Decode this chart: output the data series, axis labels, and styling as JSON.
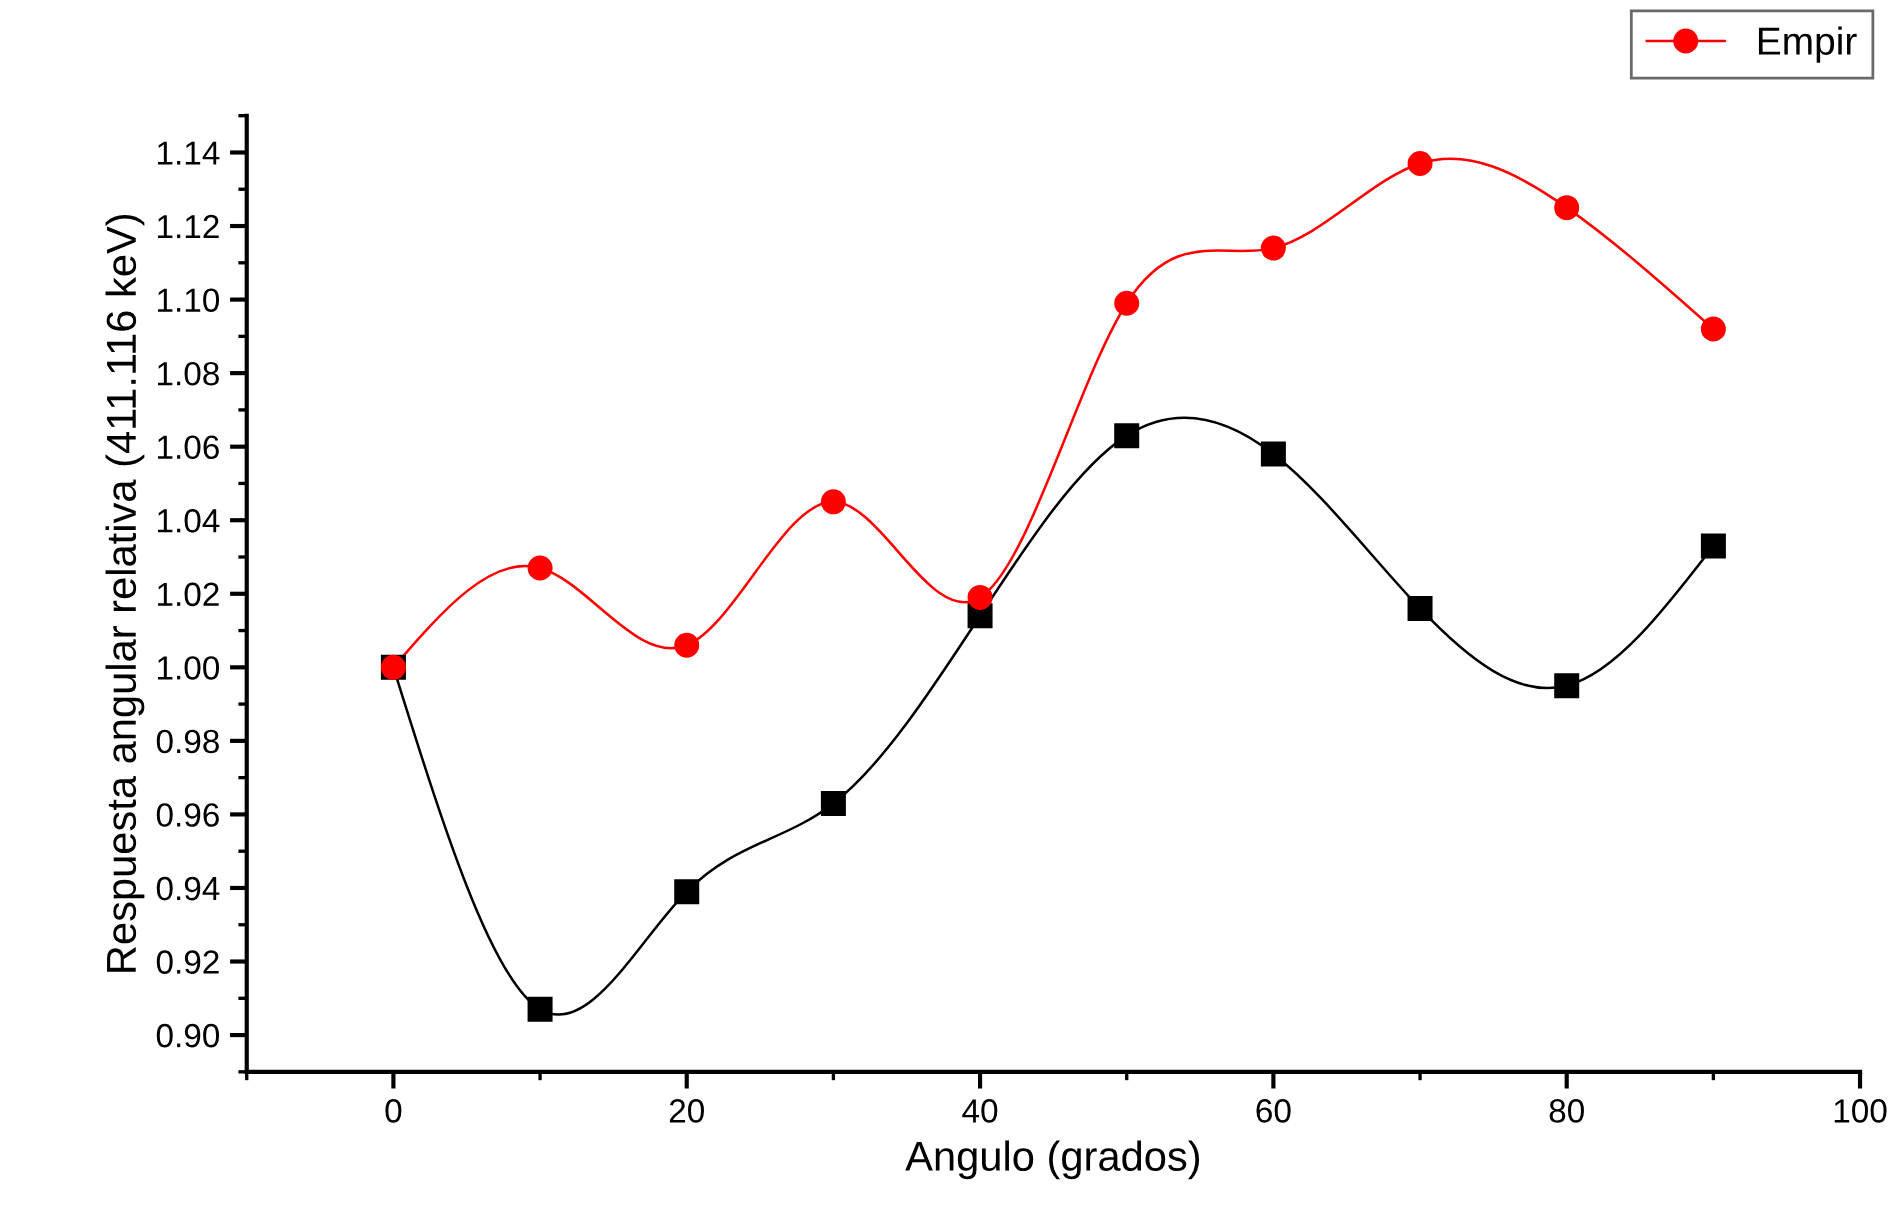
{
  "chart_data": {
    "type": "line",
    "xlabel": "Angulo (grados)",
    "ylabel": "Respuesta angular relativa (411.116 keV)",
    "x": [
      0,
      10,
      20,
      30,
      40,
      50,
      60,
      70,
      80,
      90
    ],
    "xlim": [
      -10,
      100
    ],
    "xticks": [
      0,
      20,
      40,
      60,
      80,
      100
    ],
    "ylim": [
      0.89,
      1.15
    ],
    "yticks": [
      {
        "value": 0.9,
        "label": "0.90"
      },
      {
        "value": 0.92,
        "label": "0.92"
      },
      {
        "value": 0.94,
        "label": "0.94"
      },
      {
        "value": 0.96,
        "label": "0.96"
      },
      {
        "value": 0.98,
        "label": "0.98"
      },
      {
        "value": 1.0,
        "label": "1.00"
      },
      {
        "value": 1.02,
        "label": "1.02"
      },
      {
        "value": 1.04,
        "label": "1.04"
      },
      {
        "value": 1.06,
        "label": "1.06"
      },
      {
        "value": 1.08,
        "label": "1.08"
      },
      {
        "value": 1.1,
        "label": "1.10"
      },
      {
        "value": 1.12,
        "label": "1.12"
      },
      {
        "value": 1.14,
        "label": "1.14"
      }
    ],
    "grid": false,
    "legend": "top right",
    "series": [
      {
        "color": "#000000",
        "marker": "square",
        "values": [
          1.0,
          0.907,
          0.939,
          0.963,
          1.014,
          1.063,
          1.058,
          1.016,
          0.995,
          1.033
        ]
      },
      {
        "name": "Empir",
        "color": "#ff0000",
        "marker": "circle",
        "values": [
          1.0,
          1.027,
          1.006,
          1.045,
          1.019,
          1.099,
          1.114,
          1.137,
          1.125,
          1.092
        ]
      }
    ]
  }
}
